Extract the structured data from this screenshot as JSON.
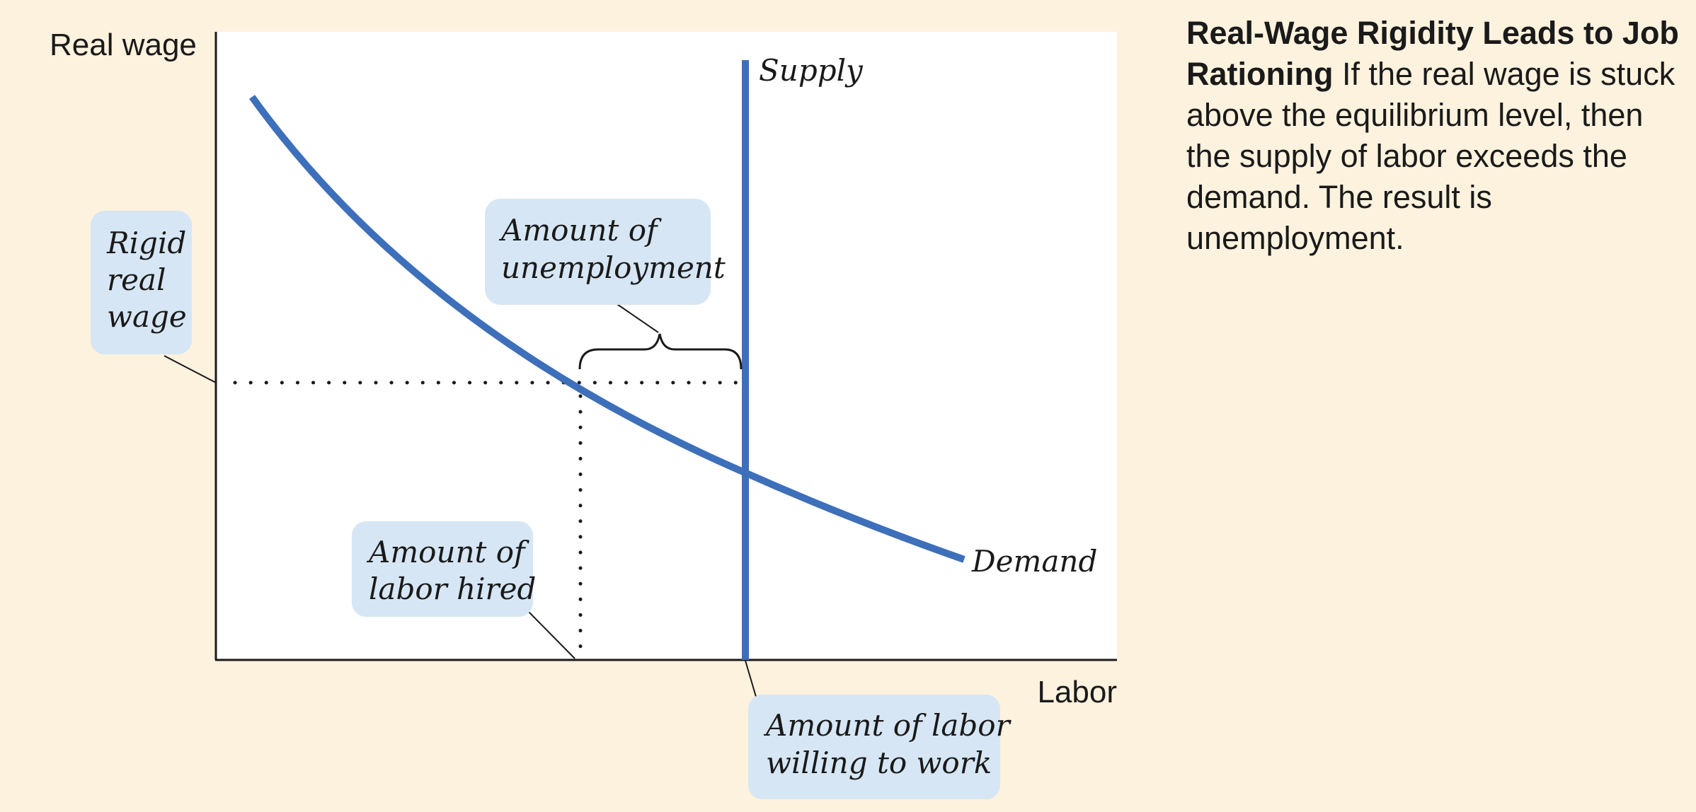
{
  "figure": {
    "y_axis_label": "Real wage",
    "x_axis_label": "Labor",
    "supply_label": "Supply",
    "demand_label": "Demand",
    "callouts": {
      "rigid_wage": [
        "Rigid",
        "real",
        "wage"
      ],
      "unemployment": [
        "Amount of",
        "unemployment"
      ],
      "labor_hired": [
        "Amount of",
        "labor hired"
      ],
      "labor_willing": [
        "Amount of labor",
        "willing to work"
      ]
    },
    "colors": {
      "background": "#fcf2de",
      "plot_area": "#ffffff",
      "curve": "#3d6fba",
      "callout_fill": "#d6e6f4"
    }
  },
  "caption": {
    "title": "Real-Wage Rigidity Leads to Job Rationing",
    "body": "If the real wage is stuck above the equilibrium level, then the supply of labor exceeds the demand. The result is unemployment."
  }
}
